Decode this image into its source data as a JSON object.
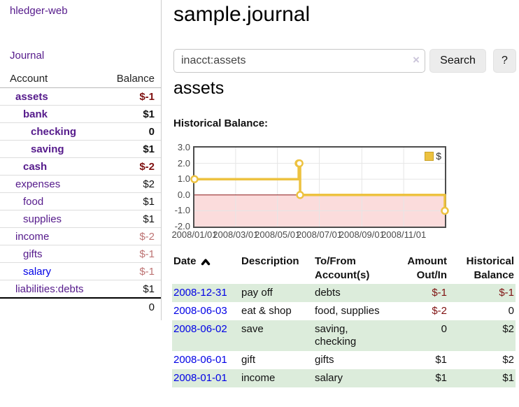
{
  "app": {
    "brand": "hledger-web",
    "nav": {
      "journal": "Journal"
    }
  },
  "colors": {
    "link_purple": "#551a8b",
    "link_blue": "#0000e6",
    "negative_strong": "#7f1111",
    "negative_soft": "#bd7373",
    "row_green": "#dcecdb",
    "series_gold": "#edc240"
  },
  "sidebar": {
    "header": {
      "account": "Account",
      "balance": "Balance"
    },
    "accounts": [
      {
        "name": "assets",
        "depth": 1,
        "balance": "$-1",
        "bold": true,
        "negative": "strong"
      },
      {
        "name": "bank",
        "depth": 2,
        "balance": "$1",
        "bold": true
      },
      {
        "name": "checking",
        "depth": 3,
        "balance": "0",
        "bold": true
      },
      {
        "name": "saving",
        "depth": 3,
        "balance": "$1",
        "bold": true
      },
      {
        "name": "cash",
        "depth": 2,
        "balance": "$-2",
        "bold": true,
        "negative": "strong"
      },
      {
        "name": "expenses",
        "depth": 1,
        "balance": "$2"
      },
      {
        "name": "food",
        "depth": 2,
        "balance": "$1"
      },
      {
        "name": "supplies",
        "depth": 2,
        "balance": "$1"
      },
      {
        "name": "income",
        "depth": 1,
        "balance": "$-2",
        "negative": "soft"
      },
      {
        "name": "gifts",
        "depth": 2,
        "balance": "$-1",
        "negative": "soft"
      },
      {
        "name": "salary",
        "depth": 2,
        "balance": "$-1",
        "negative": "soft",
        "link": "blue"
      },
      {
        "name": "liabilities:debts",
        "depth": 1,
        "balance": "$1"
      }
    ],
    "total": "0"
  },
  "main": {
    "title": "sample.journal",
    "search": {
      "value": "inacct:assets",
      "clear_label": "×",
      "search_button": "Search",
      "help_button": "?"
    },
    "account_heading": "assets",
    "chart_label": "Historical Balance:"
  },
  "chart_data": {
    "type": "line",
    "title": "Historical Balance",
    "step": true,
    "x_type": "date",
    "xlim": [
      "2008-01-01",
      "2008-12-31"
    ],
    "ylim": [
      -2,
      3
    ],
    "yticks": [
      {
        "label": "3.0",
        "value": 3
      },
      {
        "label": "2.0",
        "value": 2
      },
      {
        "label": "1.0",
        "value": 1
      },
      {
        "label": "0.0",
        "value": 0
      },
      {
        "label": "-1.0",
        "value": -1
      },
      {
        "label": "-2.0",
        "value": -2
      }
    ],
    "xticks": [
      {
        "label": "2008/01/01",
        "date": "2008-01-01"
      },
      {
        "label": "2008/03/01",
        "date": "2008-03-01"
      },
      {
        "label": "2008/05/01",
        "date": "2008-05-01"
      },
      {
        "label": "2008/07/01",
        "date": "2008-07-01"
      },
      {
        "label": "2008/09/01",
        "date": "2008-09-01"
      },
      {
        "label": "2008/11/01",
        "date": "2008-11-01"
      }
    ],
    "series": [
      {
        "name": "$",
        "color": "#edc240",
        "points": [
          {
            "date": "2008-01-01",
            "value": 1
          },
          {
            "date": "2008-06-01",
            "value": 2
          },
          {
            "date": "2008-06-02",
            "value": 2
          },
          {
            "date": "2008-06-03",
            "value": 0
          },
          {
            "date": "2008-12-31",
            "value": -1
          }
        ]
      }
    ],
    "legend": {
      "label": "$",
      "position": "top-right"
    },
    "grid": true,
    "grid_color": "#e6e6e6",
    "negative_region_color": "#fbdcdc",
    "zero_line_color": "#8c1717"
  },
  "register": {
    "columns": [
      {
        "lines": [
          "Date"
        ],
        "align": "left",
        "sort": "asc"
      },
      {
        "lines": [
          "Description"
        ],
        "align": "left"
      },
      {
        "lines": [
          "To/From",
          "Account(s)"
        ],
        "align": "left"
      },
      {
        "lines": [
          "Amount",
          "Out/In"
        ],
        "align": "right"
      },
      {
        "lines": [
          "Historical",
          "Balance"
        ],
        "align": "right"
      }
    ],
    "rows": [
      {
        "date": "2008-12-31",
        "description": "pay off",
        "accounts": "debts",
        "amount": "$-1",
        "balance": "$-1"
      },
      {
        "date": "2008-06-03",
        "description": "eat & shop",
        "accounts": "food, supplies",
        "amount": "$-2",
        "balance": "0"
      },
      {
        "date": "2008-06-02",
        "description": "save",
        "accounts": "saving,\nchecking",
        "amount": "0",
        "balance": "$2"
      },
      {
        "date": "2008-06-01",
        "description": "gift",
        "accounts": "gifts",
        "amount": "$1",
        "balance": "$2"
      },
      {
        "date": "2008-01-01",
        "description": "income",
        "accounts": "salary",
        "amount": "$1",
        "balance": "$1"
      }
    ]
  }
}
